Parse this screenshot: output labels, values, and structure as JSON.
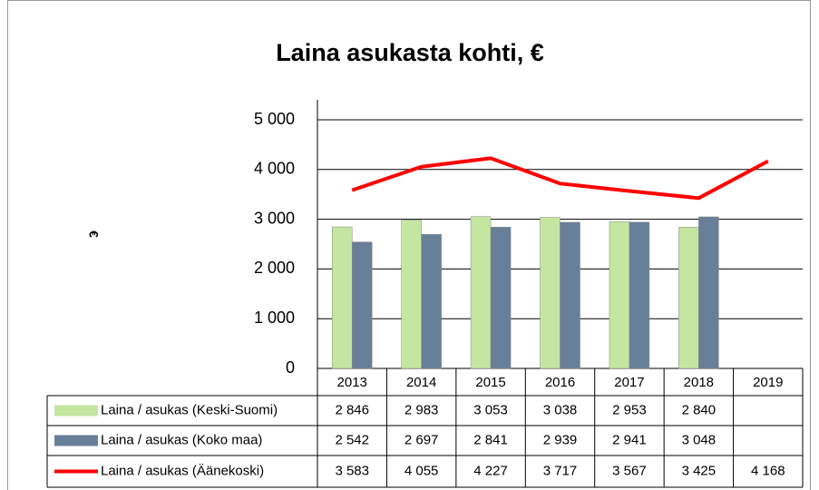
{
  "chart_data": {
    "type": "bar-line-table",
    "title": "Laina asukasta kohti, €",
    "y_label": "€",
    "categories": [
      "2013",
      "2014",
      "2015",
      "2016",
      "2017",
      "2018",
      "2019"
    ],
    "series": [
      {
        "name": "Laina / asukas (Keski-Suomi)",
        "type": "bar",
        "color": "#c3e6a1",
        "values": [
          2846,
          2983,
          3053,
          3038,
          2953,
          2840,
          null
        ],
        "value_labels": [
          "2 846",
          "2 983",
          "3 053",
          "3 038",
          "2 953",
          "2 840",
          null
        ]
      },
      {
        "name": "Laina / asukas (Koko maa)",
        "type": "bar",
        "color": "#687f99",
        "values": [
          2542,
          2697,
          2841,
          2939,
          2941,
          3048,
          null
        ],
        "value_labels": [
          "2 542",
          "2 697",
          "2 841",
          "2 939",
          "2 941",
          "3 048",
          null
        ]
      },
      {
        "name": "Laina / asukas (Äänekoski)",
        "type": "line",
        "color": "#ff0000",
        "values": [
          3583,
          4055,
          4227,
          3717,
          3567,
          3425,
          4168
        ],
        "value_labels": [
          "3 583",
          "4 055",
          "4 227",
          "3 717",
          "3 567",
          "3 425",
          "4 168"
        ]
      }
    ],
    "ylim": [
      0,
      5000
    ],
    "yticks": [
      0,
      {
        "value": 1000,
        "label": "1 000"
      },
      {
        "value": 2000,
        "label": "2 000"
      },
      {
        "value": 3000,
        "label": "3 000"
      },
      {
        "value": 4000,
        "label": "4 000"
      },
      {
        "value": 5000,
        "label": "5 000"
      }
    ],
    "grid": true
  }
}
